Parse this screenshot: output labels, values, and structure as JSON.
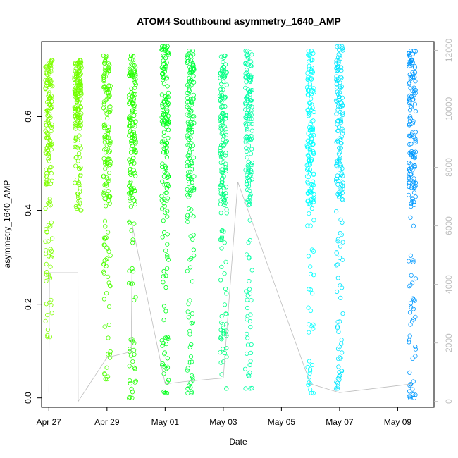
{
  "chart_data": {
    "type": "scatter",
    "title": "ATOM4 Southbound asymmetry_1640_AMP",
    "xlabel": "Date",
    "ylabel": "asymmetry_1640_AMP",
    "x_scale": "date",
    "xlim": [
      "2023-04-26T18:00",
      "2023-05-10T06:00"
    ],
    "ylim": [
      -0.02,
      0.76
    ],
    "y2lim": [
      -200,
      12300
    ],
    "grid": false,
    "legend": "none",
    "x_ticks": [
      {
        "value": "2023-04-27",
        "label": "Apr 27"
      },
      {
        "value": "2023-04-29",
        "label": "Apr 29"
      },
      {
        "value": "2023-05-01",
        "label": "May 01"
      },
      {
        "value": "2023-05-03",
        "label": "May 03"
      },
      {
        "value": "2023-05-05",
        "label": "May 05"
      },
      {
        "value": "2023-05-07",
        "label": "May 07"
      },
      {
        "value": "2023-05-09",
        "label": "May 09"
      }
    ],
    "y_ticks": [
      {
        "value": 0.0,
        "label": "0.0"
      },
      {
        "value": 0.2,
        "label": "0.2"
      },
      {
        "value": 0.4,
        "label": "0.4"
      },
      {
        "value": 0.6,
        "label": "0.6"
      }
    ],
    "y2_ticks": [
      {
        "value": 0,
        "label": "0"
      },
      {
        "value": 2000,
        "label": "2000"
      },
      {
        "value": 4000,
        "label": "4000"
      },
      {
        "value": 6000,
        "label": "6000"
      },
      {
        "value": 8000,
        "label": "8000"
      },
      {
        "value": 10000,
        "label": "10000"
      },
      {
        "value": 12000,
        "label": "12000"
      }
    ],
    "point_clusters": [
      {
        "x": "2023-04-27T00:00",
        "y_min": 0.13,
        "y_max": 0.72,
        "color": "#80ff00"
      },
      {
        "x": "2023-04-28T00:00",
        "y_min": 0.4,
        "y_max": 0.72,
        "color": "#73ff00"
      },
      {
        "x": "2023-04-29T00:00",
        "y_min": 0.04,
        "y_max": 0.73,
        "color": "#4dff00"
      },
      {
        "x": "2023-04-29T21:00",
        "y_min": 0.0,
        "y_max": 0.73,
        "color": "#26ff00"
      },
      {
        "x": "2023-05-01T00:00",
        "y_min": 0.01,
        "y_max": 0.75,
        "color": "#00ff1a"
      },
      {
        "x": "2023-05-01T21:00",
        "y_min": 0.01,
        "y_max": 0.74,
        "color": "#00ff40"
      },
      {
        "x": "2023-05-03T00:00",
        "y_min": 0.02,
        "y_max": 0.73,
        "color": "#00ff80"
      },
      {
        "x": "2023-05-03T21:00",
        "y_min": 0.02,
        "y_max": 0.74,
        "color": "#00ffa6"
      },
      {
        "x": "2023-05-06T00:00",
        "y_min": 0.01,
        "y_max": 0.74,
        "color": "#00ffff"
      },
      {
        "x": "2023-05-07T00:00",
        "y_min": 0.02,
        "y_max": 0.75,
        "color": "#00e6ff"
      },
      {
        "x": "2023-05-09T12:00",
        "y_min": 0.0,
        "y_max": 0.74,
        "color": "#0099ff"
      }
    ],
    "secondary_series": {
      "axis": "right",
      "style": "line",
      "color": "#bdbdbd",
      "x": [
        "2023-04-27T00:00",
        "2023-04-27T00:30",
        "2023-04-27T01:00",
        "2023-04-28T00:00",
        "2023-04-28T00:10",
        "2023-04-29T00:00",
        "2023-04-29T20:00",
        "2023-04-29T21:00",
        "2023-05-01T00:00",
        "2023-05-01T21:00",
        "2023-05-03T00:00",
        "2023-05-03T12:00",
        "2023-05-06T00:00",
        "2023-05-07T00:00",
        "2023-05-09T12:00"
      ],
      "y": [
        300,
        4400,
        4400,
        4400,
        0,
        1500,
        1700,
        6000,
        600,
        700,
        800,
        7500,
        600,
        300,
        600
      ]
    }
  }
}
